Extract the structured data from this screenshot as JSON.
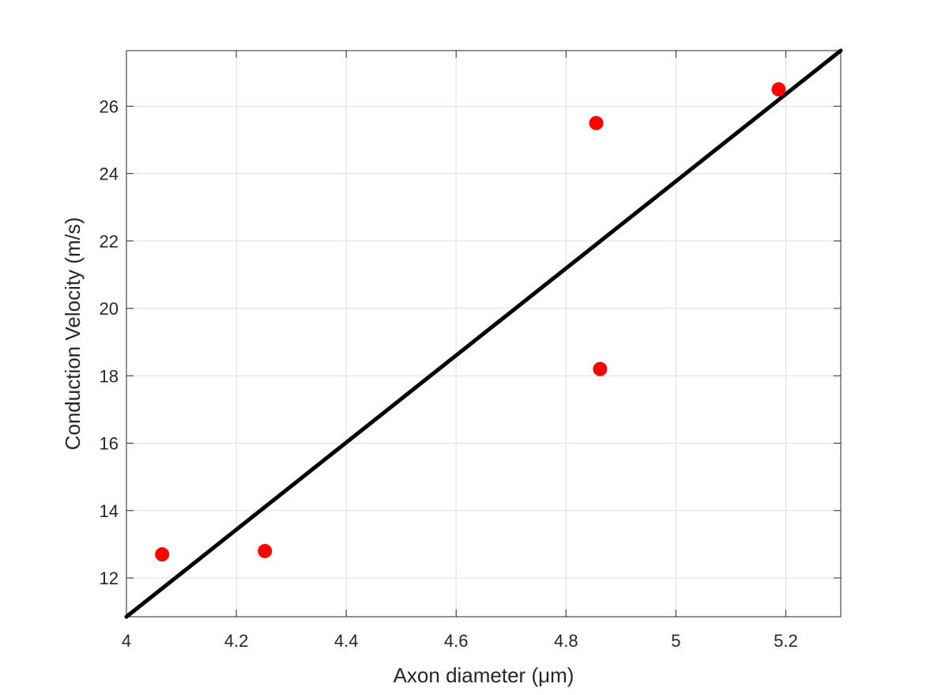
{
  "chart_data": {
    "type": "scatter",
    "title": "",
    "xlabel": "Axon diameter (μm)",
    "ylabel": "Conduction Velocity (m/s)",
    "xlim": [
      4,
      5.3
    ],
    "ylim": [
      10.85,
      27.65
    ],
    "x_ticks": [
      4,
      4.2,
      4.4,
      4.6,
      4.8,
      5,
      5.2
    ],
    "x_tick_labels": [
      "4",
      "4.2",
      "4.4",
      "4.6",
      "4.8",
      "5",
      "5.2"
    ],
    "y_ticks": [
      12,
      14,
      16,
      18,
      20,
      22,
      24,
      26
    ],
    "y_tick_labels": [
      "12",
      "14",
      "16",
      "18",
      "20",
      "22",
      "24",
      "26"
    ],
    "grid": true,
    "series": [
      {
        "type": "scatter",
        "color": "#ff0000",
        "marker": "circle",
        "points": [
          {
            "x": 4.065,
            "y": 12.7
          },
          {
            "x": 4.252,
            "y": 12.8
          },
          {
            "x": 4.855,
            "y": 25.5
          },
          {
            "x": 4.862,
            "y": 18.2
          },
          {
            "x": 5.187,
            "y": 26.5
          }
        ]
      },
      {
        "type": "line",
        "color": "#000000",
        "points": [
          {
            "x": 4.0,
            "y": 10.85
          },
          {
            "x": 5.3,
            "y": 27.65
          }
        ]
      }
    ]
  }
}
